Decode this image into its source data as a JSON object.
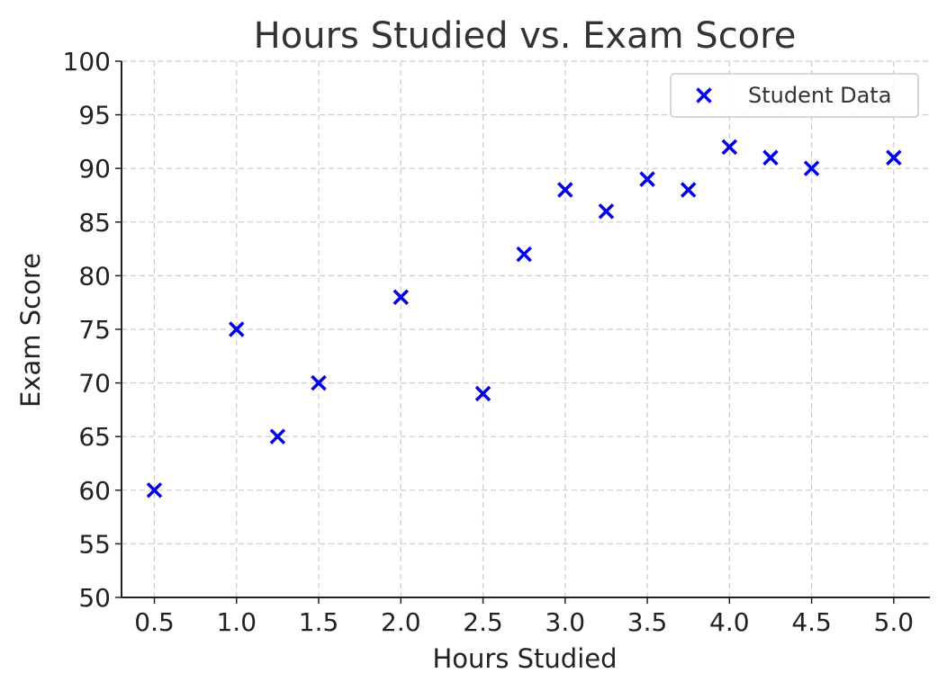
{
  "chart_data": {
    "type": "scatter",
    "title": "Hours Studied vs. Exam Score",
    "xlabel": "Hours Studied",
    "ylabel": "Exam Score",
    "xlim": [
      0.3,
      5.22
    ],
    "ylim": [
      50,
      100
    ],
    "x_ticks": [
      0.5,
      1.0,
      1.5,
      2.0,
      2.5,
      3.0,
      3.5,
      4.0,
      4.5,
      5.0
    ],
    "x_tick_labels": [
      "0.5",
      "1.0",
      "1.5",
      "2.0",
      "2.5",
      "3.0",
      "3.5",
      "4.0",
      "4.5",
      "5.0"
    ],
    "y_ticks": [
      50,
      55,
      60,
      65,
      70,
      75,
      80,
      85,
      90,
      95,
      100
    ],
    "y_tick_labels": [
      "50",
      "55",
      "60",
      "65",
      "70",
      "75",
      "80",
      "85",
      "90",
      "95",
      "100"
    ],
    "grid": true,
    "legend_position": "top-right",
    "marker": "x",
    "series": [
      {
        "name": "Student Data",
        "color": "#0000ee",
        "x": [
          0.5,
          1.0,
          1.25,
          1.5,
          2.0,
          2.5,
          2.75,
          3.0,
          3.25,
          3.5,
          3.75,
          4.0,
          4.25,
          4.5,
          5.0
        ],
        "y": [
          60,
          75,
          65,
          70,
          78,
          69,
          82,
          88,
          86,
          89,
          88,
          92,
          91,
          90,
          91
        ]
      }
    ]
  }
}
